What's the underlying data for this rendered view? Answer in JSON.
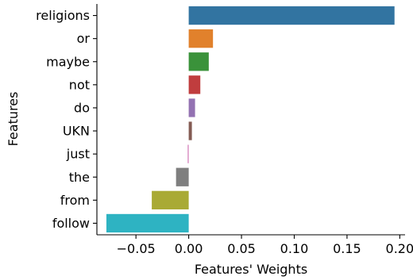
{
  "chart_data": {
    "type": "bar",
    "orientation": "horizontal",
    "categories": [
      "religions",
      "or",
      "maybe",
      "not",
      "do",
      "UKN",
      "just",
      "the",
      "from",
      "follow"
    ],
    "values": [
      0.195,
      0.023,
      0.019,
      0.011,
      0.006,
      0.003,
      -0.001,
      -0.012,
      -0.035,
      -0.078
    ],
    "colors": [
      "#3274a1",
      "#e1812c",
      "#3a923a",
      "#c03d3e",
      "#9372b2",
      "#845b53",
      "#d684bd",
      "#7f7f7f",
      "#a9aa35",
      "#2eb3c2"
    ],
    "xlabel": "Features' Weights",
    "ylabel": "Features",
    "xlim": [
      -0.087,
      0.205
    ],
    "xticks": [
      -0.05,
      0.0,
      0.05,
      0.1,
      0.15,
      0.2
    ],
    "xtick_labels": [
      "−0.05",
      "0.00",
      "0.05",
      "0.10",
      "0.15",
      "0.20"
    ],
    "grid": false,
    "legend": "none"
  }
}
